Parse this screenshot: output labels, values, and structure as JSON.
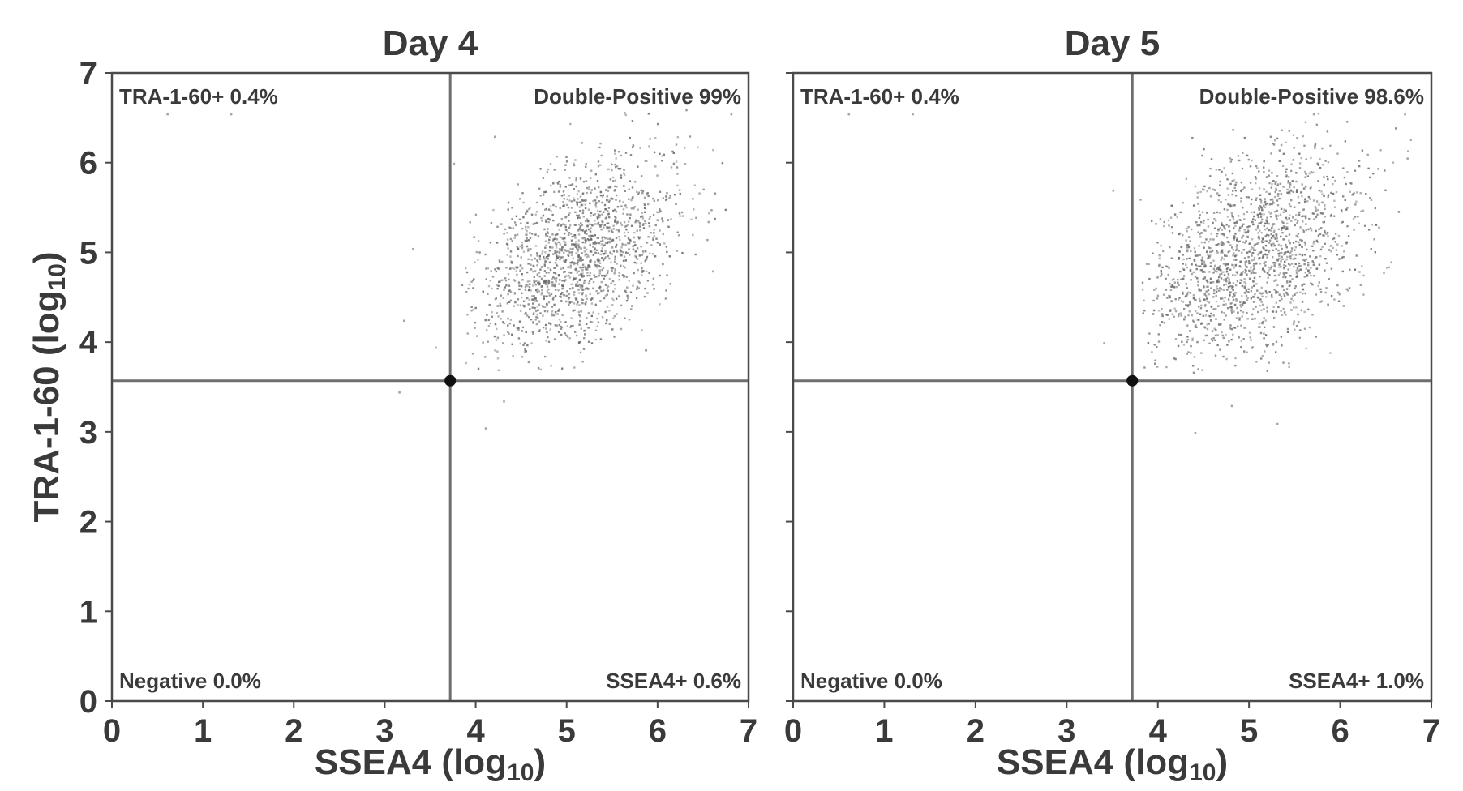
{
  "chart_data": [
    {
      "type": "scatter",
      "title": "Day 4",
      "xlabel": "SSEA4 (log10)",
      "ylabel": "TRA-1-60 (log10)",
      "xlim": [
        0,
        7
      ],
      "ylim": [
        0,
        7
      ],
      "xticks": [
        "0",
        "1",
        "2",
        "3",
        "4",
        "5",
        "6",
        "7"
      ],
      "yticks": [
        "0",
        "1",
        "2",
        "3",
        "4",
        "5",
        "6",
        "7"
      ],
      "gate": {
        "x": 3.72,
        "y": 3.57
      },
      "quadrants": {
        "top_left": "TRA-1-60+ 0.4%",
        "top_right": "Double-Positive 99%",
        "bottom_left": "Negative 0.0%",
        "bottom_right": "SSEA4+ 0.6%"
      },
      "cluster": {
        "center": [
          5.1,
          5.0
        ],
        "spread": [
          0.55,
          0.55
        ],
        "correlation": 0.45,
        "count": 1600
      },
      "outliers": [
        [
          3.3,
          5.05
        ],
        [
          3.2,
          4.25
        ],
        [
          3.15,
          3.45
        ],
        [
          4.1,
          3.05
        ],
        [
          6.6,
          4.8
        ],
        [
          6.55,
          5.35
        ],
        [
          4.3,
          3.35
        ],
        [
          3.75,
          6.0
        ],
        [
          0.6,
          6.55
        ],
        [
          1.3,
          6.55
        ],
        [
          4.2,
          6.3
        ],
        [
          6.8,
          6.55
        ],
        [
          3.55,
          3.95
        ]
      ]
    },
    {
      "type": "scatter",
      "title": "Day 5",
      "xlabel": "SSEA4 (log10)",
      "ylabel": "",
      "xlim": [
        0,
        7
      ],
      "ylim": [
        0,
        7
      ],
      "xticks": [
        "0",
        "1",
        "2",
        "3",
        "4",
        "5",
        "6",
        "7"
      ],
      "yticks": [],
      "gate": {
        "x": 3.72,
        "y": 3.57
      },
      "quadrants": {
        "top_left": "TRA-1-60+ 0.4%",
        "top_right": "Double-Positive 98.6%",
        "bottom_left": "Negative 0.0%",
        "bottom_right": "SSEA4+ 1.0%"
      },
      "cluster": {
        "center": [
          5.0,
          4.95
        ],
        "spread": [
          0.6,
          0.6
        ],
        "correlation": 0.4,
        "count": 1700
      },
      "outliers": [
        [
          3.4,
          4.0
        ],
        [
          3.5,
          5.7
        ],
        [
          3.8,
          5.6
        ],
        [
          4.4,
          3.0
        ],
        [
          5.3,
          3.1
        ],
        [
          6.55,
          4.9
        ],
        [
          0.6,
          6.55
        ],
        [
          1.3,
          6.55
        ],
        [
          5.7,
          6.55
        ],
        [
          6.7,
          6.55
        ],
        [
          4.8,
          3.3
        ]
      ]
    }
  ]
}
